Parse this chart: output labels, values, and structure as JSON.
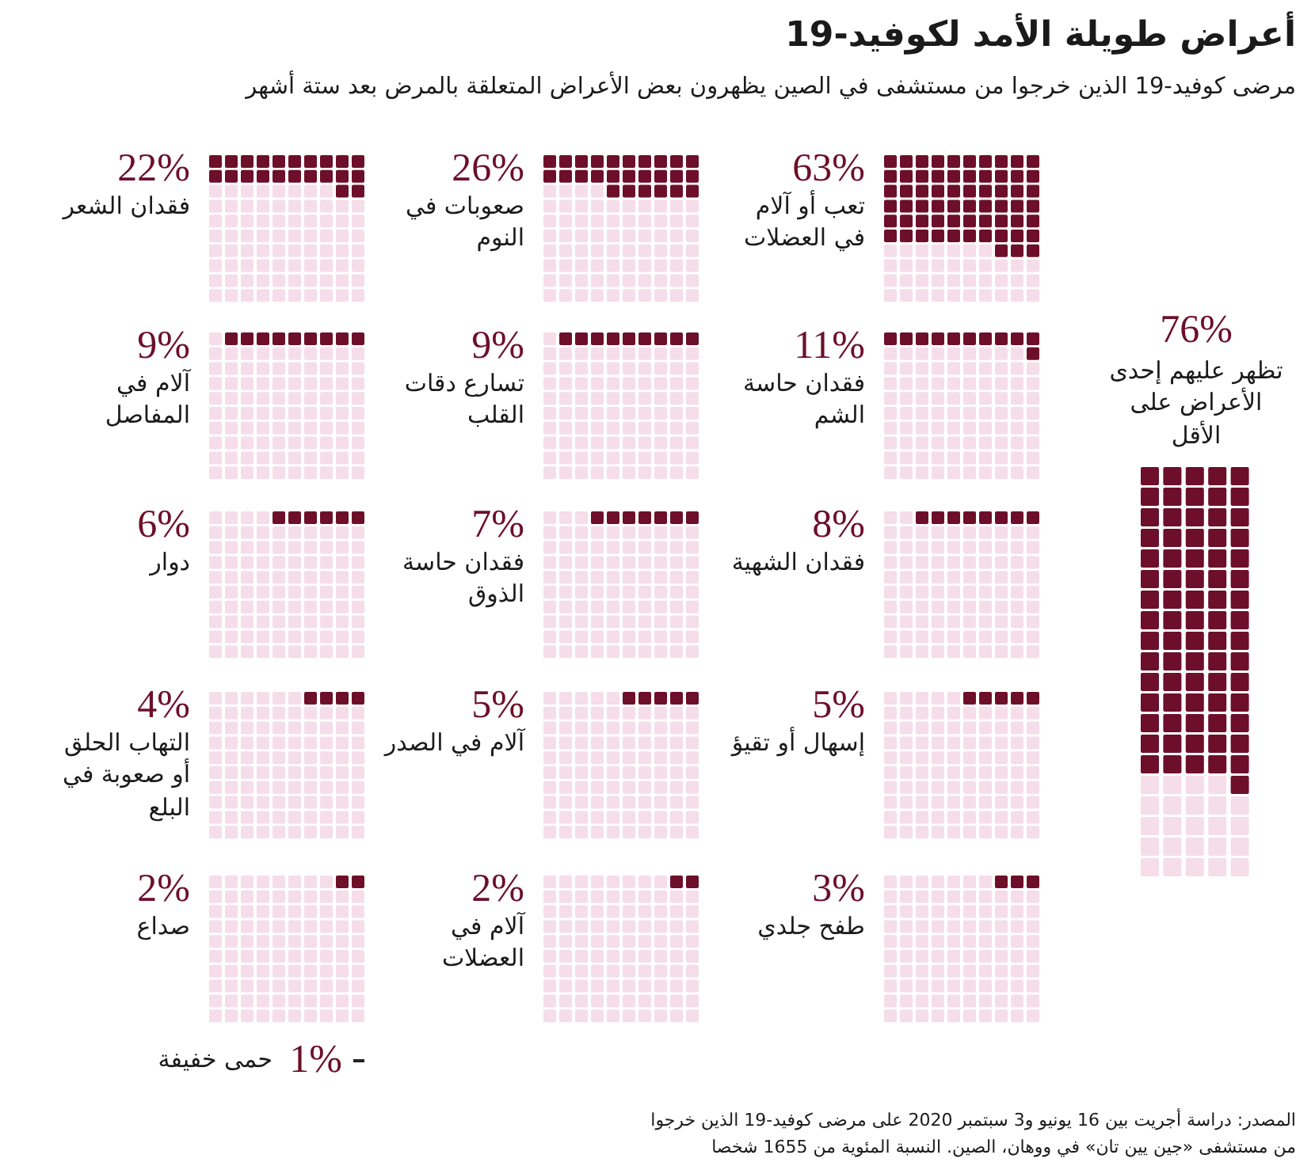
{
  "chart_data": {
    "type": "other",
    "title": "أعراض طويلة الأمد لكوفيد-19",
    "subtitle": "مرضى كوفيد-19 الذين خرجوا من مستشفى في الصين يظهرون بعض الأعراض المتعلقة بالمرض بعد ستة أشهر",
    "categories": [
      "تعب أو آلام في العضلات",
      "صعوبات في النوم",
      "فقدان الشعر",
      "فقدان حاسة الشم",
      "تسارع دقات القلب",
      "آلام في المفاصل",
      "فقدان الشهية",
      "فقدان حاسة الذوق",
      "دوار",
      "إسهال أو تقيؤ",
      "آلام في الصدر",
      "التهاب الحلق أو صعوبة في البلع",
      "طفح جلدي",
      "آلام في العضلات",
      "صداع",
      "حمى خفيفة",
      "تظهر عليهم إحدى الأعراض على الأقل"
    ],
    "values": [
      63,
      26,
      22,
      11,
      9,
      9,
      8,
      7,
      6,
      5,
      5,
      4,
      3,
      2,
      2,
      1,
      76
    ],
    "value_labels": [
      "63%",
      "26%",
      "22%",
      "11%",
      "9%",
      "9%",
      "8%",
      "7%",
      "6%",
      "5%",
      "5%",
      "4%",
      "3%",
      "2%",
      "2%",
      "1%",
      "76%"
    ],
    "color": "#6d0f2a",
    "annotations": [
      "المصدر: دراسة أجريت بين 16 يونيو و3 سبتمبر 2020 على مرضى كوفيد-19 الذين خرجوا من مستشفى «جين يين تان» في ووهان، الصين. النسبة المئوية من 1655 شخصا"
    ]
  }
}
